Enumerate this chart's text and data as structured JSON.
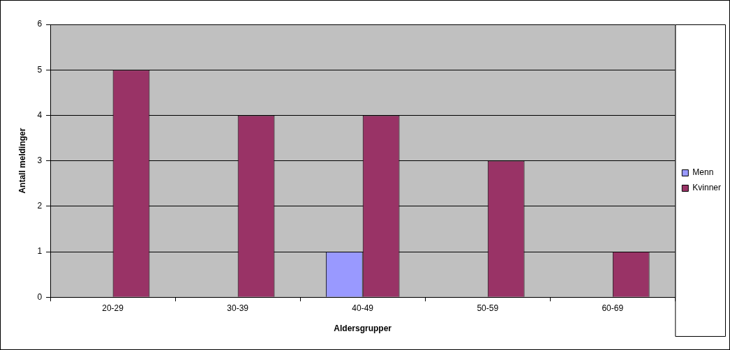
{
  "chart_data": {
    "type": "bar",
    "xlabel": "Aldersgrupper",
    "ylabel": "Antall meldinger",
    "categories": [
      "20-29",
      "30-39",
      "40-49",
      "50-59",
      "60-69"
    ],
    "series": [
      {
        "name": "Menn",
        "color": "#9999ff",
        "values": [
          0,
          0,
          1,
          0,
          0
        ]
      },
      {
        "name": "Kvinner",
        "color": "#993366",
        "values": [
          5,
          4,
          4,
          3,
          1
        ]
      }
    ],
    "ylim": [
      0,
      6
    ],
    "yticks": [
      0,
      1,
      2,
      3,
      4,
      5,
      6
    ],
    "grid": "y",
    "legend": "right"
  }
}
